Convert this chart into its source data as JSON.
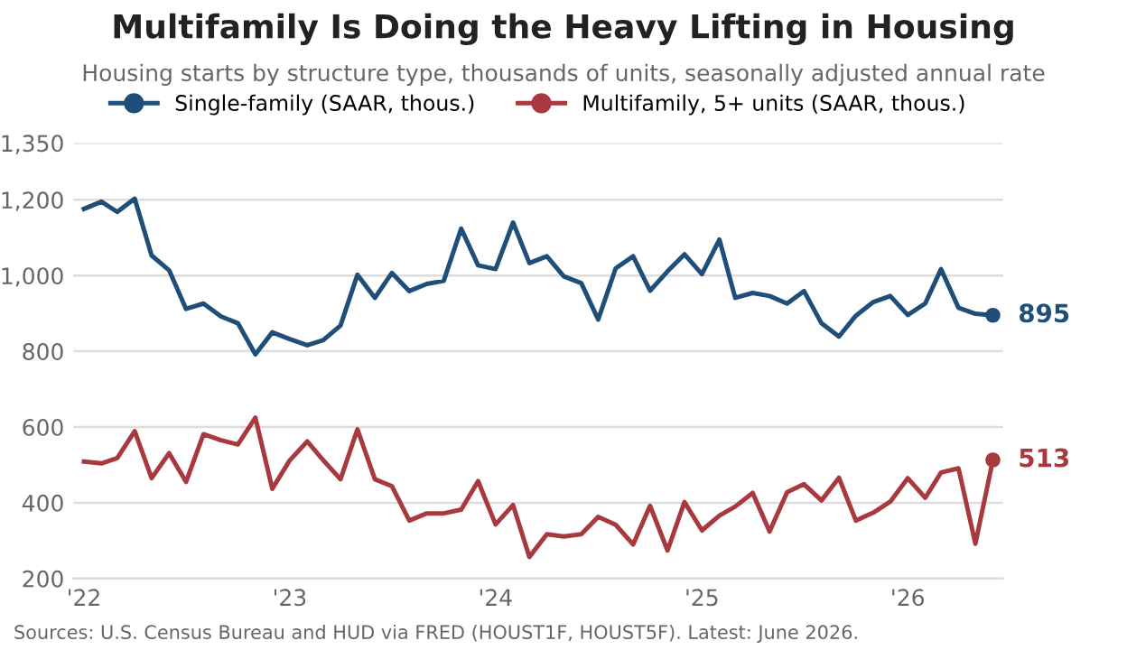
{
  "chart_data": {
    "type": "line",
    "title": "Multifamily Is Doing the Heavy Lifting in Housing",
    "subtitle": "Housing starts by structure type, thousands of units, seasonally adjusted annual rate",
    "annotations": [
      "Sources: U.S. Census Bureau and HUD via FRED (HOUST1F, HOUST5F). Latest: June 2026."
    ],
    "x": [
      "2022-01",
      "2022-02",
      "2022-03",
      "2022-04",
      "2022-05",
      "2022-06",
      "2022-07",
      "2022-08",
      "2022-09",
      "2022-10",
      "2022-11",
      "2022-12",
      "2023-01",
      "2023-02",
      "2023-03",
      "2023-04",
      "2023-05",
      "2023-06",
      "2023-07",
      "2023-08",
      "2023-09",
      "2023-10",
      "2023-11",
      "2023-12",
      "2024-01",
      "2024-02",
      "2024-03",
      "2024-04",
      "2024-05",
      "2024-06",
      "2024-07",
      "2024-08",
      "2024-09",
      "2024-10",
      "2024-11",
      "2024-12",
      "2025-01",
      "2025-02",
      "2025-03",
      "2025-04",
      "2025-05",
      "2025-06",
      "2025-07",
      "2025-08",
      "2025-09",
      "2025-10",
      "2025-11",
      "2025-12",
      "2026-01",
      "2026-02",
      "2026-03",
      "2026-04",
      "2026-05",
      "2026-06"
    ],
    "series": [
      {
        "name": "Single-family (SAAR, thous.)",
        "color": "#1f4e79",
        "values": [
          1176,
          1195,
          1168,
          1203,
          1053,
          1014,
          912,
          926,
          892,
          874,
          792,
          850,
          832,
          816,
          829,
          868,
          1002,
          941,
          1007,
          959,
          978,
          986,
          1124,
          1027,
          1017,
          1140,
          1033,
          1051,
          998,
          980,
          884,
          1019,
          1051,
          960,
          1011,
          1056,
          1004,
          1095,
          941,
          954,
          946,
          926,
          959,
          874,
          839,
          894,
          930,
          946,
          896,
          926,
          1017,
          915,
          899,
          895
        ],
        "value_labels": [
          null,
          null,
          null,
          null,
          null,
          null,
          null,
          null,
          null,
          null,
          null,
          null,
          null,
          null,
          null,
          null,
          null,
          null,
          null,
          null,
          null,
          null,
          null,
          null,
          null,
          null,
          null,
          null,
          null,
          null,
          null,
          null,
          null,
          null,
          null,
          null,
          null,
          null,
          null,
          null,
          null,
          null,
          null,
          null,
          null,
          null,
          null,
          null,
          null,
          null,
          null,
          null,
          null,
          "895"
        ]
      },
      {
        "name": "Multifamily, 5+ units (SAAR, thous.)",
        "color": "#a83a3f",
        "values": [
          509,
          504,
          518,
          589,
          465,
          531,
          455,
          581,
          565,
          554,
          625,
          437,
          512,
          562,
          513,
          462,
          594,
          462,
          444,
          353,
          372,
          372,
          382,
          457,
          343,
          394,
          257,
          317,
          311,
          317,
          363,
          342,
          290,
          392,
          274,
          402,
          327,
          366,
          390,
          426,
          324,
          428,
          449,
          406,
          466,
          353,
          374,
          403,
          465,
          413,
          480,
          491,
          292,
          513
        ],
        "value_labels": [
          null,
          null,
          null,
          null,
          null,
          null,
          null,
          null,
          null,
          null,
          null,
          null,
          null,
          null,
          null,
          null,
          null,
          null,
          null,
          null,
          null,
          null,
          null,
          null,
          null,
          null,
          null,
          null,
          null,
          null,
          null,
          null,
          null,
          null,
          null,
          null,
          null,
          null,
          null,
          null,
          null,
          null,
          null,
          null,
          null,
          null,
          null,
          null,
          null,
          null,
          null,
          null,
          null,
          "513"
        ]
      }
    ],
    "xlim": [
      "2021-12-13",
      "2026-06-19"
    ],
    "xticks": [
      {
        "value": "2022-01",
        "label": "'22"
      },
      {
        "value": "2023-01",
        "label": "'23"
      },
      {
        "value": "2024-01",
        "label": "'24"
      },
      {
        "value": "2025-01",
        "label": "'25"
      },
      {
        "value": "2026-01",
        "label": "'26"
      }
    ],
    "ylim": [
      200,
      1350
    ],
    "yticks": [
      200,
      400,
      600,
      800,
      {
        "value": 1000,
        "label": "1,000"
      },
      {
        "value": 1200,
        "label": "1,200"
      },
      {
        "value": 1350,
        "label": "1,350"
      }
    ],
    "grid": "y",
    "legend": "top",
    "line_style": "solid"
  }
}
